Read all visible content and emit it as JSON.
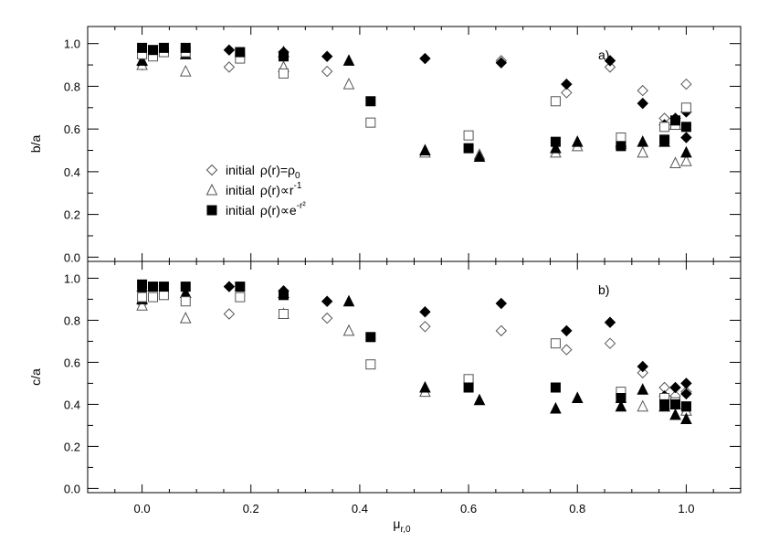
{
  "chart_data": [
    {
      "type": "scatter",
      "panel_label": "a)",
      "ylabel": "b/a",
      "xlabel": "",
      "xlim": [
        -0.1,
        1.1
      ],
      "ylim": [
        -0.02,
        1.08
      ],
      "x_ticks": [
        "0.0",
        "0.2",
        "0.4",
        "0.6",
        "0.8",
        "1.0"
      ],
      "x_ticks_labelled": false,
      "y_ticks": [
        "0.0",
        "0.2",
        "0.4",
        "0.6",
        "0.8",
        "1.0"
      ],
      "grid": false,
      "legend_position": "center-left",
      "legend": [
        {
          "marker": "diamond",
          "prefix": "initial",
          "text": "ρ(r)=ρ",
          "sub": "0",
          "sup": ""
        },
        {
          "marker": "triangle",
          "prefix": "initial",
          "text": "ρ(r)∝r",
          "sub": "",
          "sup": "-1"
        },
        {
          "marker": "square",
          "prefix": "initial",
          "text": "ρ(r)∝e",
          "sub": "",
          "sup": "-r²"
        }
      ],
      "series": [
        {
          "marker": "diamond",
          "fill": "open",
          "points": [
            [
              0.0,
              0.9
            ],
            [
              0.16,
              0.89
            ],
            [
              0.34,
              0.87
            ],
            [
              0.66,
              0.92
            ],
            [
              0.78,
              0.77
            ],
            [
              0.86,
              0.89
            ],
            [
              0.92,
              0.78
            ],
            [
              0.96,
              0.65
            ],
            [
              1.0,
              0.81
            ]
          ]
        },
        {
          "marker": "diamond",
          "fill": "filled",
          "points": [
            [
              0.16,
              0.97
            ],
            [
              0.26,
              0.96
            ],
            [
              0.34,
              0.94
            ],
            [
              0.52,
              0.93
            ],
            [
              0.66,
              0.91
            ],
            [
              0.78,
              0.81
            ],
            [
              0.86,
              0.92
            ],
            [
              0.92,
              0.72
            ],
            [
              0.96,
              0.62
            ],
            [
              0.98,
              0.65
            ],
            [
              1.0,
              0.56
            ],
            [
              1.0,
              0.68
            ]
          ]
        },
        {
          "marker": "triangle",
          "fill": "open",
          "points": [
            [
              0.0,
              0.9
            ],
            [
              0.08,
              0.87
            ],
            [
              0.26,
              0.89
            ],
            [
              0.38,
              0.81
            ],
            [
              0.52,
              0.49
            ],
            [
              0.62,
              0.48
            ],
            [
              0.76,
              0.49
            ],
            [
              0.8,
              0.52
            ],
            [
              0.88,
              0.53
            ],
            [
              0.92,
              0.49
            ],
            [
              0.98,
              0.44
            ],
            [
              1.0,
              0.45
            ]
          ]
        },
        {
          "marker": "triangle",
          "fill": "filled",
          "points": [
            [
              0.0,
              0.92
            ],
            [
              0.08,
              0.95
            ],
            [
              0.26,
              0.96
            ],
            [
              0.38,
              0.92
            ],
            [
              0.52,
              0.5
            ],
            [
              0.62,
              0.47
            ],
            [
              0.76,
              0.51
            ],
            [
              0.8,
              0.54
            ],
            [
              0.88,
              0.54
            ],
            [
              0.92,
              0.54
            ],
            [
              0.96,
              0.54
            ],
            [
              0.98,
              0.62
            ],
            [
              1.0,
              0.49
            ]
          ]
        },
        {
          "marker": "square",
          "fill": "open",
          "points": [
            [
              0.0,
              0.95
            ],
            [
              0.02,
              0.94
            ],
            [
              0.04,
              0.96
            ],
            [
              0.08,
              0.96
            ],
            [
              0.18,
              0.93
            ],
            [
              0.26,
              0.86
            ],
            [
              0.42,
              0.63
            ],
            [
              0.6,
              0.57
            ],
            [
              0.76,
              0.73
            ],
            [
              0.88,
              0.56
            ],
            [
              0.96,
              0.61
            ],
            [
              0.98,
              0.62
            ],
            [
              1.0,
              0.7
            ]
          ]
        },
        {
          "marker": "square",
          "fill": "filled",
          "points": [
            [
              0.0,
              0.98
            ],
            [
              0.02,
              0.97
            ],
            [
              0.04,
              0.98
            ],
            [
              0.08,
              0.98
            ],
            [
              0.18,
              0.96
            ],
            [
              0.26,
              0.94
            ],
            [
              0.42,
              0.73
            ],
            [
              0.6,
              0.51
            ],
            [
              0.76,
              0.54
            ],
            [
              0.88,
              0.52
            ],
            [
              0.96,
              0.55
            ],
            [
              0.98,
              0.64
            ],
            [
              1.0,
              0.61
            ]
          ]
        }
      ]
    },
    {
      "type": "scatter",
      "panel_label": "b)",
      "ylabel": "c/a",
      "xlabel": "μ",
      "xlabel_sub": "r,0",
      "xlim": [
        -0.1,
        1.1
      ],
      "ylim": [
        -0.02,
        1.08
      ],
      "x_ticks": [
        "0.0",
        "0.2",
        "0.4",
        "0.6",
        "0.8",
        "1.0"
      ],
      "x_ticks_labelled": true,
      "y_ticks": [
        "0.0",
        "0.2",
        "0.4",
        "0.6",
        "0.8",
        "1.0"
      ],
      "grid": false,
      "series": [
        {
          "marker": "diamond",
          "fill": "open",
          "points": [
            [
              0.0,
              0.88
            ],
            [
              0.16,
              0.83
            ],
            [
              0.34,
              0.81
            ],
            [
              0.52,
              0.77
            ],
            [
              0.66,
              0.75
            ],
            [
              0.78,
              0.66
            ],
            [
              0.86,
              0.69
            ],
            [
              0.92,
              0.55
            ],
            [
              0.96,
              0.48
            ],
            [
              0.98,
              0.44
            ],
            [
              1.0,
              0.46
            ]
          ]
        },
        {
          "marker": "diamond",
          "fill": "filled",
          "points": [
            [
              0.0,
              0.94
            ],
            [
              0.16,
              0.96
            ],
            [
              0.26,
              0.94
            ],
            [
              0.34,
              0.89
            ],
            [
              0.52,
              0.84
            ],
            [
              0.66,
              0.88
            ],
            [
              0.78,
              0.75
            ],
            [
              0.86,
              0.79
            ],
            [
              0.92,
              0.58
            ],
            [
              0.96,
              0.44
            ],
            [
              0.98,
              0.48
            ],
            [
              1.0,
              0.5
            ],
            [
              1.0,
              0.45
            ]
          ]
        },
        {
          "marker": "triangle",
          "fill": "open",
          "points": [
            [
              0.0,
              0.87
            ],
            [
              0.08,
              0.81
            ],
            [
              0.26,
              0.83
            ],
            [
              0.38,
              0.75
            ],
            [
              0.52,
              0.46
            ],
            [
              0.88,
              0.43
            ],
            [
              0.92,
              0.39
            ],
            [
              0.98,
              0.4
            ],
            [
              1.0,
              0.37
            ]
          ]
        },
        {
          "marker": "triangle",
          "fill": "filled",
          "points": [
            [
              0.0,
              0.9
            ],
            [
              0.08,
              0.93
            ],
            [
              0.26,
              0.93
            ],
            [
              0.38,
              0.89
            ],
            [
              0.52,
              0.48
            ],
            [
              0.62,
              0.42
            ],
            [
              0.76,
              0.38
            ],
            [
              0.8,
              0.43
            ],
            [
              0.88,
              0.39
            ],
            [
              0.92,
              0.47
            ],
            [
              0.96,
              0.39
            ],
            [
              0.98,
              0.35
            ],
            [
              1.0,
              0.33
            ]
          ]
        },
        {
          "marker": "square",
          "fill": "open",
          "points": [
            [
              0.0,
              0.91
            ],
            [
              0.02,
              0.91
            ],
            [
              0.04,
              0.92
            ],
            [
              0.08,
              0.89
            ],
            [
              0.18,
              0.91
            ],
            [
              0.26,
              0.83
            ],
            [
              0.42,
              0.59
            ],
            [
              0.6,
              0.52
            ],
            [
              0.76,
              0.69
            ],
            [
              0.88,
              0.46
            ],
            [
              0.96,
              0.43
            ],
            [
              0.98,
              0.41
            ],
            [
              1.0,
              0.39
            ]
          ]
        },
        {
          "marker": "square",
          "fill": "filled",
          "points": [
            [
              0.0,
              0.97
            ],
            [
              0.02,
              0.96
            ],
            [
              0.04,
              0.96
            ],
            [
              0.08,
              0.96
            ],
            [
              0.18,
              0.96
            ],
            [
              0.26,
              0.92
            ],
            [
              0.42,
              0.72
            ],
            [
              0.6,
              0.48
            ],
            [
              0.76,
              0.48
            ],
            [
              0.88,
              0.43
            ],
            [
              0.96,
              0.4
            ],
            [
              0.98,
              0.4
            ],
            [
              1.0,
              0.39
            ]
          ]
        }
      ]
    }
  ]
}
